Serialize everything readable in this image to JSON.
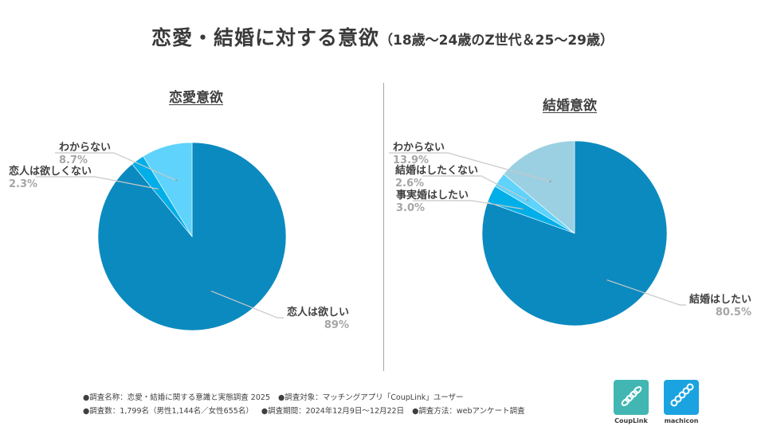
{
  "title": "恋愛・結婚に対する意欲",
  "subtitle": "（18歳〜24歳のZ世代＆25〜29歳）",
  "chart_data": [
    {
      "type": "pie",
      "title": "恋愛意欲",
      "slices": [
        {
          "label": "恋人は欲しい",
          "value": 89,
          "display": "89%",
          "color": "#0b8ac0"
        },
        {
          "label": "恋人は欲しくない",
          "value": 2.3,
          "display": "2.3%",
          "color": "#00aee8"
        },
        {
          "label": "わからない",
          "value": 8.7,
          "display": "8.7%",
          "color": "#5fd3fb"
        }
      ]
    },
    {
      "type": "pie",
      "title": "結婚意欲",
      "slices": [
        {
          "label": "結婚はしたい",
          "value": 80.5,
          "display": "80.5%",
          "color": "#0b8ac0"
        },
        {
          "label": "事実婚はしたい",
          "value": 3.0,
          "display": "3.0%",
          "color": "#00aee8"
        },
        {
          "label": "結婚はしたくない",
          "value": 2.6,
          "display": "2.6%",
          "color": "#5fd3fb"
        },
        {
          "label": "わからない",
          "value": 13.9,
          "display": "13.9%",
          "color": "#9bd0e2"
        }
      ]
    }
  ],
  "notes": {
    "line1": [
      "●調査名称：恋愛・結婚に関する意識と実態調査 2025",
      "●調査対象：マッチングアプリ「CoupLink」ユーザー"
    ],
    "line2": [
      "●調査数：1,799名（男性1,144名／女性655名）",
      "●調査期間：2024年12月9日〜12月22日",
      "●調査方法：webアンケート調査"
    ]
  },
  "logos": [
    {
      "name": "CoupLink",
      "color": "#41b6b2",
      "icon": "ring-chain-icon"
    },
    {
      "name": "machicon",
      "color": "#1aa3e0",
      "icon": "chain-icon"
    }
  ]
}
